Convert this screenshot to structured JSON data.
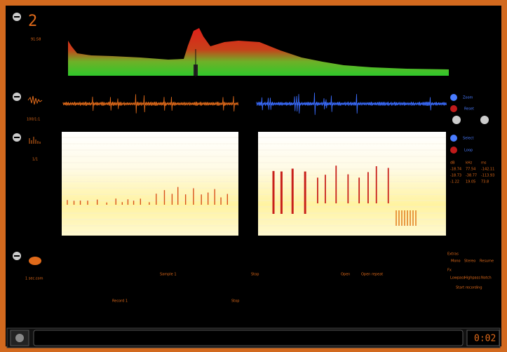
{
  "counter": "2",
  "side_captions": [
    "91:58",
    "100/1:1",
    "1/1",
    "1 sec.com"
  ],
  "right_panel": {
    "buttons": [
      "Zoom",
      "Reset",
      "Select",
      "Loop"
    ],
    "stats": [
      [
        "dB",
        "kHz",
        "ms"
      ],
      [
        "-18.74",
        "77.54",
        "-142.11"
      ],
      [
        "-18.73",
        "-38.77",
        "-113.93"
      ],
      [
        "-1.22",
        "19.05",
        "73.8"
      ]
    ]
  },
  "options": {
    "title": "Extras",
    "row1": [
      "Mono",
      "Stereo",
      "Resume"
    ],
    "title2": "Fx",
    "row2": [
      "Lowpass",
      "Highpass",
      "Notch"
    ],
    "action": "Start recording"
  },
  "track_labels": [
    "Sample 1",
    "Stop",
    "Open",
    "Open repeat",
    "Record 1",
    "Stop"
  ],
  "time": "0:02"
}
